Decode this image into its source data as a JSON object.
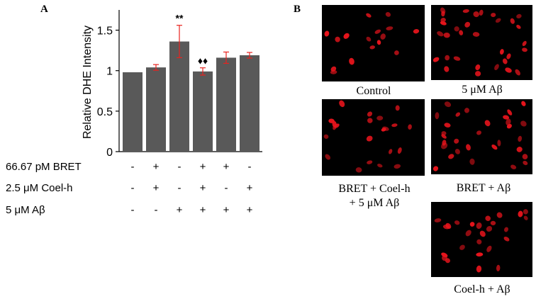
{
  "panel_a": {
    "letter": "A",
    "ylabel": "Relative DHE Intensity",
    "significance": [
      {
        "bar_index": 2,
        "text": "**"
      },
      {
        "bar_index": 3,
        "text": "♦♦"
      }
    ],
    "conditions": [
      {
        "label": "66.67 pM BRET",
        "signs": [
          "-",
          "+",
          "-",
          "+",
          "+",
          "-"
        ]
      },
      {
        "label": "2.5 μM Coel-h",
        "signs": [
          "-",
          "+",
          "-",
          "+",
          "-",
          "+"
        ]
      },
      {
        "label": "5 μM Aβ",
        "signs": [
          "-",
          "-",
          "+",
          "+",
          "+",
          "+"
        ]
      }
    ]
  },
  "panel_b": {
    "letter": "B",
    "images": [
      {
        "caption_lines": [
          "Control"
        ]
      },
      {
        "caption_lines": [
          "5 μM Aβ"
        ]
      },
      {
        "caption_lines": [
          "BRET + Coel-h",
          "+ 5 μM Aβ"
        ]
      },
      {
        "caption_lines": [
          "BRET + Aβ"
        ]
      },
      {
        "caption_lines": [
          "Coel-h + Aβ"
        ]
      }
    ]
  },
  "colors": {
    "bar": "#595959",
    "error_bar": "#e8231f",
    "cell_bg": "#000000",
    "nucleus": "#e8141c"
  },
  "chart_data": {
    "type": "bar",
    "ylabel": "Relative DHE Intensity",
    "ylim": [
      0,
      1.75
    ],
    "yticks": [
      0,
      0.5,
      1,
      1.5
    ],
    "ytick_labels": [
      "0",
      "0.5",
      "1",
      "1.5"
    ],
    "values": [
      0.98,
      1.04,
      1.36,
      0.99,
      1.16,
      1.19
    ],
    "errors": [
      0,
      0.035,
      0.2,
      0.045,
      0.07,
      0.035
    ],
    "grid": false,
    "legend": "none"
  }
}
